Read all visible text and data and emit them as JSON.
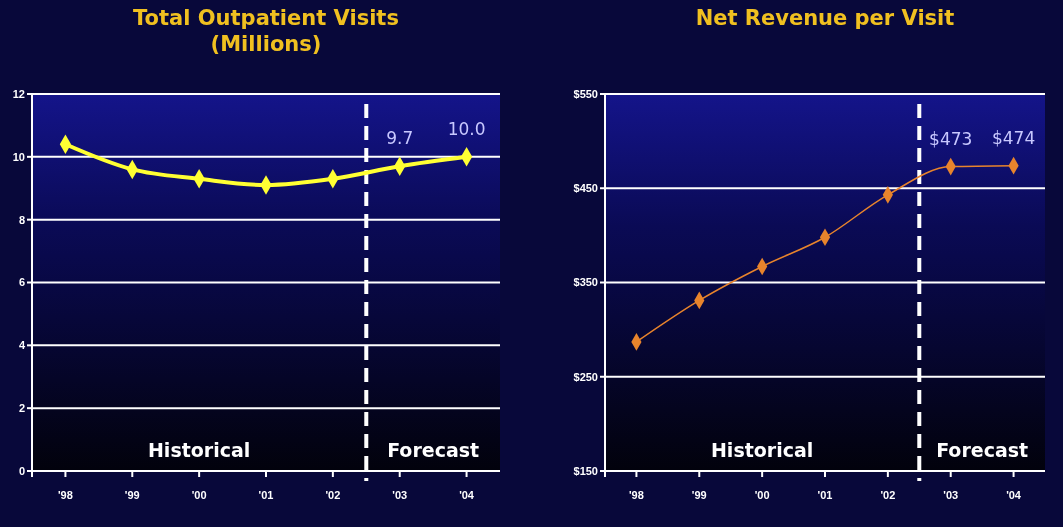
{
  "chart_data": [
    {
      "type": "line",
      "title": "Total Outpatient Visits\n(Millions)",
      "x": [
        1998,
        1999,
        2000,
        2001,
        2002,
        2003,
        2004
      ],
      "xlim": [
        1997.5,
        2004.5
      ],
      "xticks": [
        {
          "value": 1998,
          "label": "'98"
        },
        {
          "value": 1999,
          "label": "'99"
        },
        {
          "value": 2000,
          "label": "'00"
        },
        {
          "value": 2001,
          "label": "'01"
        },
        {
          "value": 2002,
          "label": "'02"
        },
        {
          "value": 2003,
          "label": "'03"
        },
        {
          "value": 2004,
          "label": "'04"
        }
      ],
      "ylim": [
        0,
        12
      ],
      "yticks": [
        0,
        2,
        4,
        6,
        8,
        10,
        12
      ],
      "series": [
        {
          "color": "#ffff33",
          "values": [
            10.4,
            9.6,
            9.3,
            9.1,
            9.3,
            9.7,
            10.0
          ],
          "value_labels": [
            null,
            null,
            null,
            null,
            null,
            "9.7",
            "10.0"
          ]
        }
      ],
      "ref_lines": [
        {
          "axis": "x",
          "value": 2002.5,
          "color": "#ffffff",
          "line_style": "dashed"
        }
      ],
      "annotations": [
        "Historical",
        "Forecast"
      ],
      "grid": "y",
      "marker": "diamond"
    },
    {
      "type": "line",
      "title": "Net Revenue per Visit",
      "x": [
        1998,
        1999,
        2000,
        2001,
        2002,
        2003,
        2004
      ],
      "xlim": [
        1997.5,
        2004.5
      ],
      "xticks": [
        {
          "value": 1998,
          "label": "'98"
        },
        {
          "value": 1999,
          "label": "'99"
        },
        {
          "value": 2000,
          "label": "'00"
        },
        {
          "value": 2001,
          "label": "'01"
        },
        {
          "value": 2002,
          "label": "'02"
        },
        {
          "value": 2003,
          "label": "'03"
        },
        {
          "value": 2004,
          "label": "'04"
        }
      ],
      "ylim": [
        150,
        550
      ],
      "yticks": [
        {
          "value": 150,
          "label": "$150"
        },
        {
          "value": 250,
          "label": "$250"
        },
        {
          "value": 350,
          "label": "$350"
        },
        {
          "value": 450,
          "label": "$450"
        },
        {
          "value": 550,
          "label": "$550"
        }
      ],
      "series": [
        {
          "color": "#e8842c",
          "values": [
            287,
            331,
            367,
            398,
            443,
            473,
            474
          ],
          "value_labels": [
            null,
            null,
            null,
            null,
            null,
            "$473",
            "$474"
          ]
        }
      ],
      "ref_lines": [
        {
          "axis": "x",
          "value": 2002.5,
          "color": "#ffffff",
          "line_style": "dashed"
        }
      ],
      "annotations": [
        "Historical",
        "Forecast"
      ],
      "grid": "y",
      "marker": "diamond"
    }
  ]
}
